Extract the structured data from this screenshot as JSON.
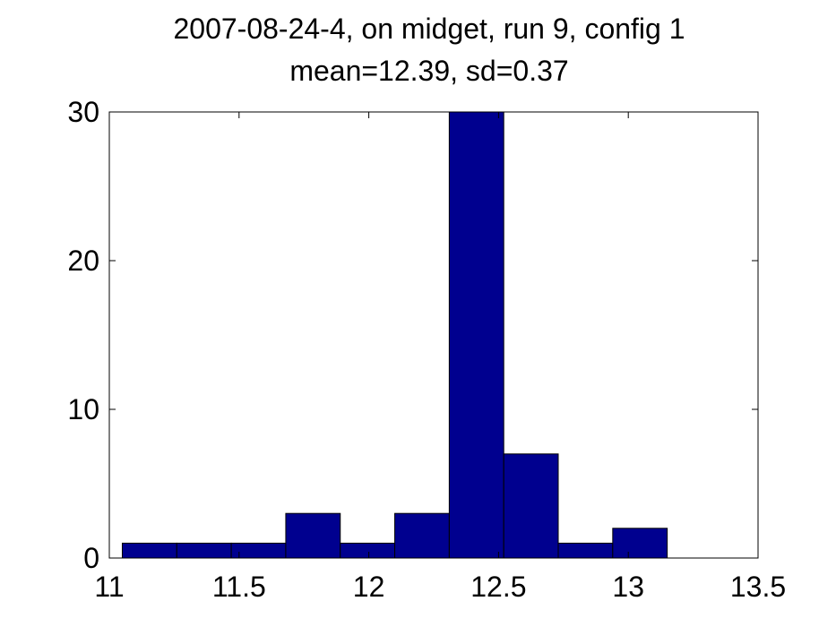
{
  "chart_data": {
    "type": "bar",
    "title_lines": [
      "2007-08-24-4, on midget, run 9, config 1",
      "mean=12.39, sd=0.37"
    ],
    "xlabel": "",
    "ylabel": "",
    "xlim": [
      11,
      13.5
    ],
    "ylim": [
      0,
      30
    ],
    "xticks": [
      11,
      11.5,
      12,
      12.5,
      13,
      13.5
    ],
    "xtick_labels": [
      "11",
      "11.5",
      "12",
      "12.5",
      "13",
      "13.5"
    ],
    "yticks": [
      0,
      10,
      20,
      30
    ],
    "ytick_labels": [
      "0",
      "10",
      "20",
      "30"
    ],
    "bins": [
      {
        "x0": 11.05,
        "x1": 11.26,
        "count": 1
      },
      {
        "x0": 11.26,
        "x1": 11.47,
        "count": 1
      },
      {
        "x0": 11.47,
        "x1": 11.68,
        "count": 1
      },
      {
        "x0": 11.68,
        "x1": 11.89,
        "count": 3
      },
      {
        "x0": 11.89,
        "x1": 12.1,
        "count": 1
      },
      {
        "x0": 12.1,
        "x1": 12.31,
        "count": 3
      },
      {
        "x0": 12.31,
        "x1": 12.52,
        "count": 30
      },
      {
        "x0": 12.52,
        "x1": 12.73,
        "count": 7
      },
      {
        "x0": 12.73,
        "x1": 12.94,
        "count": 1
      },
      {
        "x0": 12.94,
        "x1": 13.15,
        "count": 2
      }
    ],
    "bar_color": "#00008f",
    "edge_color": "#000000",
    "grid": false,
    "legend": "none"
  }
}
